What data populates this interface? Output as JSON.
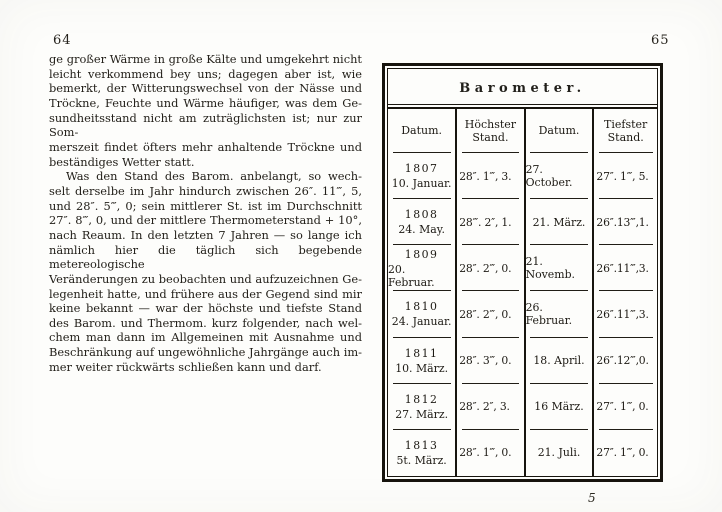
{
  "left": {
    "page_number": "64",
    "lines": [
      "ge großer Wärme in große Kälte und umgekehrt nicht",
      "leicht verkommend bey uns; dagegen aber ist, wie",
      "bemerkt, der Witterungswechsel von der Nässe und",
      "Tröckne, Feuchte und Wärme häufiger, was dem Ge-",
      "sundheitsstand nicht am zuträglichsten ist; nur zur Som-",
      "merszeit findet öfters mehr anhaltende Tröckne und",
      "beständiges Wetter statt.",
      "Was den Stand des Barom. anbelangt, so wech-",
      "selt derselbe im Jahr hindurch zwischen 26″. 11‴, 5,",
      "und 28″. 5‴, 0; sein mittlerer St. ist im Durchschnitt",
      "27″. 8‴, 0, und der mittlere Thermometerstand + 10°,",
      "nach Reaum. In den letzten 7 Jahren — so lange ich",
      "nämlich hier die täglich sich begebende metereologische",
      "Veränderungen zu beobachten und aufzuzeichnen Ge-",
      "legenheit hatte, und frühere aus der Gegend sind mir",
      "keine bekannt — war der höchste und tiefste Stand",
      "des Barom. und Thermom. kurz folgender, nach wel-",
      "chem man dann im Allgemeinen mit Ausnahme und",
      "Beschränkung auf ungewöhnliche Jahrgänge auch im-",
      "mer weiter rückwärts schließen kann und darf."
    ]
  },
  "right": {
    "page_number": "65",
    "signature_mark": "5",
    "table": {
      "title": "Barometer.",
      "headers": [
        "Datum.",
        "Höchster Stand.",
        "Datum.",
        "Tiefster Stand."
      ],
      "rows": [
        {
          "year": "1807",
          "date": "10. Januar.",
          "high": "28″. 1‴, 3.",
          "date2": "27. October.",
          "low": "27″. 1‴, 5."
        },
        {
          "year": "1808",
          "date": "24. May.",
          "high": "28‴. 2″, 1.",
          "date2": "21. März.",
          "low": "26″.13‴,1."
        },
        {
          "year": "1809",
          "date": "20. Februar.",
          "high": "28″. 2‴, 0.",
          "date2": "21. Novemb.",
          "low": "26″.11‴,3."
        },
        {
          "year": "1810",
          "date": "24. Januar.",
          "high": "28″. 2‴, 0.",
          "date2": "26. Februar.",
          "low": "26″.11‴,3."
        },
        {
          "year": "1811",
          "date": "10. März.",
          "high": "28″. 3‴, 0.",
          "date2": "18. April.",
          "low": "26″.12‴,0."
        },
        {
          "year": "1812",
          "date": "27. März.",
          "high": "28″. 2″, 3.",
          "date2": "16 März.",
          "low": "27″. 1‴, 0."
        },
        {
          "year": "1813",
          "date": "5t. März.",
          "high": "28″. 1‴, 0.",
          "date2": "21. Juli.",
          "low": "27″. 1‴, 0."
        }
      ]
    }
  },
  "colors": {
    "ink": "#17140e",
    "paper": "#fdfdfb"
  }
}
